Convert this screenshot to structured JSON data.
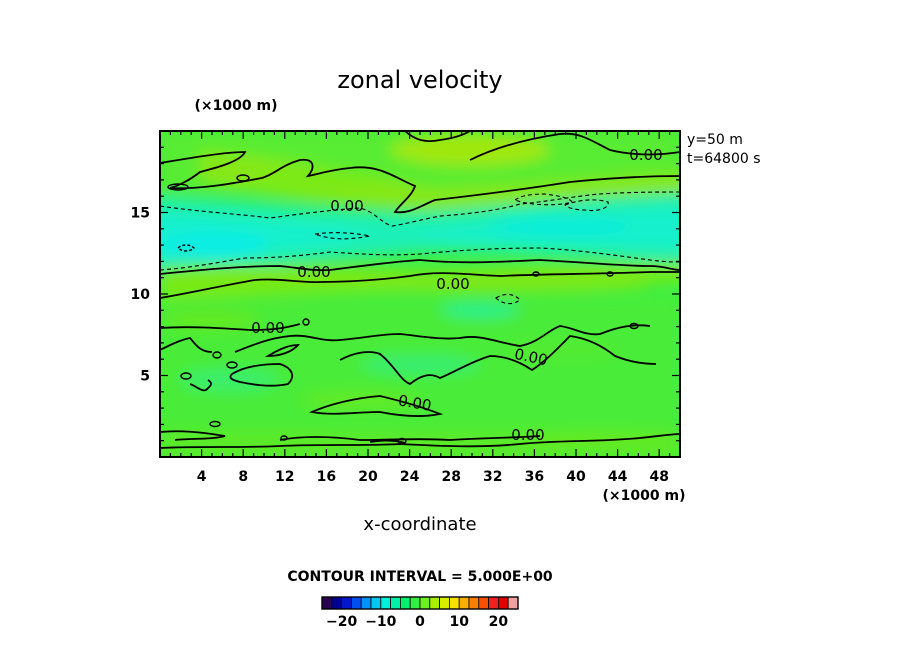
{
  "chart_data": {
    "type": "heatmap",
    "title": "zonal velocity",
    "xlabel": "x-coordinate",
    "x_scale_label": "(×1000 m)",
    "y_scale_label": "(×1000 m)",
    "xlim": [
      0,
      50
    ],
    "ylim": [
      0,
      20
    ],
    "x_ticks": [
      "4",
      "8",
      "12",
      "16",
      "20",
      "24",
      "28",
      "32",
      "36",
      "40",
      "44",
      "48"
    ],
    "y_ticks": [
      "5",
      "10",
      "15"
    ],
    "annotations": [
      "y=50 m",
      "t=64800 s"
    ],
    "contour_interval": "CONTOUR INTERVAL = 5.000E+00",
    "contour_labels": [
      "0.00",
      "0.00",
      "0.00",
      "0.00",
      "0.00",
      "0.00",
      "0.00",
      "0.00"
    ],
    "colorbar": {
      "range": [
        -25,
        25
      ],
      "tick_labels": [
        "−20",
        "−10",
        "0",
        "10",
        "20"
      ],
      "colors": [
        "#2a0050",
        "#000090",
        "#0018c8",
        "#0050f0",
        "#0090f8",
        "#00c8f0",
        "#00f0d8",
        "#00f0a8",
        "#00f070",
        "#30f040",
        "#70f020",
        "#a8f000",
        "#d8f000",
        "#f8e000",
        "#f8b000",
        "#f88000",
        "#f85000",
        "#f02020",
        "#e00000",
        "#f0a0a0"
      ]
    },
    "field_notes": "values mostly between -5 and 5; negative band near y=12-16, positive bands near y=10-11 and y=17-19"
  }
}
